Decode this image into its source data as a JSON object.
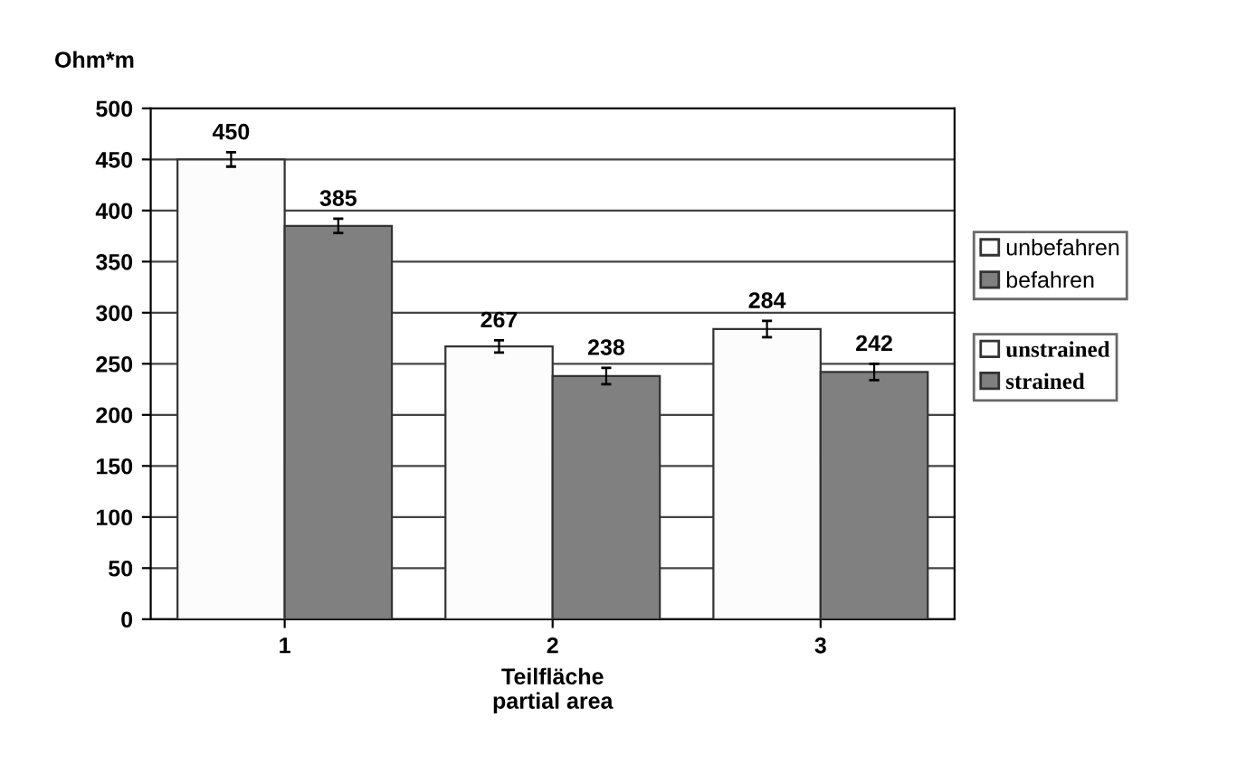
{
  "chart_data": {
    "type": "bar",
    "ylabel": "Ohm*m",
    "xlabel": "Teilfläche\npartial area",
    "categories": [
      "1",
      "2",
      "3"
    ],
    "series": [
      {
        "name": "unbefahren",
        "color": "#fcfcfc",
        "values": [
          450,
          267,
          284
        ],
        "errors": [
          7,
          6,
          8
        ]
      },
      {
        "name": "befahren",
        "color": "#808080",
        "values": [
          385,
          238,
          242
        ],
        "errors": [
          7,
          8,
          8
        ]
      }
    ],
    "annotations": [
      "unstrained",
      "strained"
    ],
    "data_labels": true,
    "ylim": [
      0,
      500
    ],
    "yticks": [
      0,
      50,
      100,
      150,
      200,
      250,
      300,
      350,
      400,
      450,
      500
    ],
    "grid": "y",
    "legend": "right"
  }
}
